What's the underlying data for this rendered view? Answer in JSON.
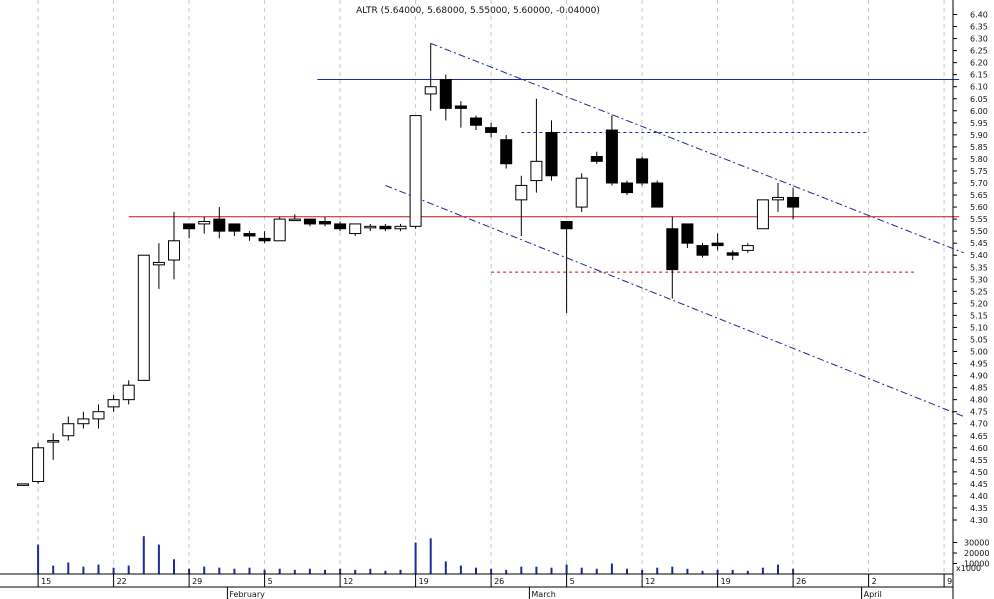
{
  "chart_data": {
    "type": "candlestick",
    "title": "ALTR (5.64000, 5.68000, 5.55000, 5.60000, -0.04000)",
    "price_axis": {
      "ylim": [
        4.2,
        6.45
      ],
      "ticks": [
        "6.40",
        "6.35",
        "6.30",
        "6.25",
        "6.20",
        "6.15",
        "6.10",
        "6.05",
        "6.00",
        "5.95",
        "5.90",
        "5.85",
        "5.80",
        "5.75",
        "5.70",
        "5.65",
        "5.60",
        "5.55",
        "5.50",
        "5.45",
        "5.40",
        "5.35",
        "5.30",
        "5.25",
        "5.20",
        "5.15",
        "5.10",
        "5.05",
        "5.00",
        "4.95",
        "4.90",
        "4.85",
        "4.80",
        "4.75",
        "4.70",
        "4.65",
        "4.60",
        "4.55",
        "4.50",
        "4.45",
        "4.40",
        "4.35",
        "4.30"
      ]
    },
    "volume_axis": {
      "ticks": [
        "30000",
        "20000",
        "10000"
      ],
      "unit_label": "x1000",
      "vmax": 40000
    },
    "x_axis": {
      "day_ticks": [
        {
          "label": "15",
          "slot": 1
        },
        {
          "label": "22",
          "slot": 6
        },
        {
          "label": "29",
          "slot": 11
        },
        {
          "label": "5",
          "slot": 16
        },
        {
          "label": "12",
          "slot": 21
        },
        {
          "label": "19",
          "slot": 26
        },
        {
          "label": "26",
          "slot": 31
        },
        {
          "label": "5",
          "slot": 36
        },
        {
          "label": "12",
          "slot": 41
        },
        {
          "label": "19",
          "slot": 46
        },
        {
          "label": "26",
          "slot": 51
        },
        {
          "label": "2",
          "slot": 56
        },
        {
          "label": "9",
          "slot": 61
        }
      ],
      "month_ticks": [
        {
          "label": "February",
          "slot": 14
        },
        {
          "label": "March",
          "slot": 34
        },
        {
          "label": "April",
          "slot": 56
        }
      ]
    },
    "candles": [
      {
        "slot": 0,
        "o": 4.45,
        "h": 4.45,
        "l": 4.45,
        "c": 4.45,
        "v": 0
      },
      {
        "slot": 1,
        "o": 4.46,
        "h": 4.62,
        "l": 4.45,
        "c": 4.6,
        "v": 28000
      },
      {
        "slot": 2,
        "o": 4.63,
        "h": 4.66,
        "l": 4.55,
        "c": 4.63,
        "v": 8000
      },
      {
        "slot": 3,
        "o": 4.65,
        "h": 4.73,
        "l": 4.63,
        "c": 4.7,
        "v": 11000
      },
      {
        "slot": 4,
        "o": 4.7,
        "h": 4.75,
        "l": 4.68,
        "c": 4.72,
        "v": 7000
      },
      {
        "slot": 5,
        "o": 4.72,
        "h": 4.78,
        "l": 4.68,
        "c": 4.75,
        "v": 9000
      },
      {
        "slot": 6,
        "o": 4.77,
        "h": 4.82,
        "l": 4.75,
        "c": 4.8,
        "v": 6000
      },
      {
        "slot": 7,
        "o": 4.8,
        "h": 4.88,
        "l": 4.78,
        "c": 4.86,
        "v": 8000
      },
      {
        "slot": 8,
        "o": 4.88,
        "h": 5.4,
        "l": 4.88,
        "c": 5.4,
        "v": 36000
      },
      {
        "slot": 9,
        "o": 5.36,
        "h": 5.45,
        "l": 5.26,
        "c": 5.37,
        "v": 28000
      },
      {
        "slot": 10,
        "o": 5.38,
        "h": 5.58,
        "l": 5.3,
        "c": 5.46,
        "v": 14000
      },
      {
        "slot": 11,
        "o": 5.53,
        "h": 5.53,
        "l": 5.47,
        "c": 5.51,
        "v": 5000
      },
      {
        "slot": 12,
        "o": 5.53,
        "h": 5.56,
        "l": 5.49,
        "c": 5.54,
        "v": 7000
      },
      {
        "slot": 13,
        "o": 5.55,
        "h": 5.6,
        "l": 5.47,
        "c": 5.5,
        "v": 6000
      },
      {
        "slot": 14,
        "o": 5.53,
        "h": 5.53,
        "l": 5.48,
        "c": 5.5,
        "v": 5000
      },
      {
        "slot": 15,
        "o": 5.49,
        "h": 5.5,
        "l": 5.46,
        "c": 5.48,
        "v": 6000
      },
      {
        "slot": 16,
        "o": 5.47,
        "h": 5.5,
        "l": 5.45,
        "c": 5.46,
        "v": 4000
      },
      {
        "slot": 17,
        "o": 5.46,
        "h": 5.56,
        "l": 5.46,
        "c": 5.55,
        "v": 5000
      },
      {
        "slot": 18,
        "o": 5.55,
        "h": 5.57,
        "l": 5.55,
        "c": 5.55,
        "v": 4000
      },
      {
        "slot": 19,
        "o": 5.55,
        "h": 5.55,
        "l": 5.52,
        "c": 5.53,
        "v": 5000
      },
      {
        "slot": 20,
        "o": 5.54,
        "h": 5.56,
        "l": 5.52,
        "c": 5.53,
        "v": 4000
      },
      {
        "slot": 21,
        "o": 5.53,
        "h": 5.54,
        "l": 5.5,
        "c": 5.51,
        "v": 5000
      },
      {
        "slot": 22,
        "o": 5.49,
        "h": 5.53,
        "l": 5.48,
        "c": 5.53,
        "v": 4000
      },
      {
        "slot": 23,
        "o": 5.52,
        "h": 5.53,
        "l": 5.5,
        "c": 5.52,
        "v": 5000
      },
      {
        "slot": 24,
        "o": 5.52,
        "h": 5.53,
        "l": 5.5,
        "c": 5.51,
        "v": 3000
      },
      {
        "slot": 25,
        "o": 5.51,
        "h": 5.53,
        "l": 5.5,
        "c": 5.52,
        "v": 4000
      },
      {
        "slot": 26,
        "o": 5.52,
        "h": 5.98,
        "l": 5.51,
        "c": 5.98,
        "v": 30000
      },
      {
        "slot": 27,
        "o": 6.07,
        "h": 6.28,
        "l": 6.0,
        "c": 6.1,
        "v": 34000
      },
      {
        "slot": 28,
        "o": 6.13,
        "h": 6.15,
        "l": 5.96,
        "c": 6.01,
        "v": 12000
      },
      {
        "slot": 29,
        "o": 6.02,
        "h": 6.04,
        "l": 5.93,
        "c": 6.01,
        "v": 8000
      },
      {
        "slot": 30,
        "o": 5.97,
        "h": 5.98,
        "l": 5.92,
        "c": 5.94,
        "v": 6000
      },
      {
        "slot": 31,
        "o": 5.93,
        "h": 5.95,
        "l": 5.89,
        "c": 5.91,
        "v": 5000
      },
      {
        "slot": 32,
        "o": 5.88,
        "h": 5.9,
        "l": 5.76,
        "c": 5.78,
        "v": 4000
      },
      {
        "slot": 33,
        "o": 5.63,
        "h": 5.73,
        "l": 5.48,
        "c": 5.69,
        "v": 7000
      },
      {
        "slot": 34,
        "o": 5.71,
        "h": 6.05,
        "l": 5.66,
        "c": 5.79,
        "v": 7000
      },
      {
        "slot": 35,
        "o": 5.91,
        "h": 5.96,
        "l": 5.71,
        "c": 5.73,
        "v": 6000
      },
      {
        "slot": 36,
        "o": 5.54,
        "h": 5.54,
        "l": 5.16,
        "c": 5.51,
        "v": 9000
      },
      {
        "slot": 37,
        "o": 5.6,
        "h": 5.74,
        "l": 5.58,
        "c": 5.72,
        "v": 6000
      },
      {
        "slot": 38,
        "o": 5.81,
        "h": 5.83,
        "l": 5.78,
        "c": 5.79,
        "v": 5000
      },
      {
        "slot": 39,
        "o": 5.92,
        "h": 5.98,
        "l": 5.69,
        "c": 5.7,
        "v": 10000
      },
      {
        "slot": 40,
        "o": 5.7,
        "h": 5.71,
        "l": 5.65,
        "c": 5.66,
        "v": 5000
      },
      {
        "slot": 41,
        "o": 5.8,
        "h": 5.81,
        "l": 5.69,
        "c": 5.7,
        "v": 4000
      },
      {
        "slot": 42,
        "o": 5.7,
        "h": 5.71,
        "l": 5.6,
        "c": 5.6,
        "v": 6000
      },
      {
        "slot": 43,
        "o": 5.51,
        "h": 5.56,
        "l": 5.22,
        "c": 5.34,
        "v": 7000
      },
      {
        "slot": 44,
        "o": 5.53,
        "h": 5.53,
        "l": 5.43,
        "c": 5.45,
        "v": 5000
      },
      {
        "slot": 45,
        "o": 5.44,
        "h": 5.45,
        "l": 5.39,
        "c": 5.4,
        "v": 3000
      },
      {
        "slot": 46,
        "o": 5.45,
        "h": 5.49,
        "l": 5.42,
        "c": 5.44,
        "v": 4000
      },
      {
        "slot": 47,
        "o": 5.41,
        "h": 5.42,
        "l": 5.38,
        "c": 5.4,
        "v": 4000
      },
      {
        "slot": 48,
        "o": 5.42,
        "h": 5.45,
        "l": 5.41,
        "c": 5.44,
        "v": 3000
      },
      {
        "slot": 49,
        "o": 5.51,
        "h": 5.63,
        "l": 5.51,
        "c": 5.63,
        "v": 6000
      },
      {
        "slot": 50,
        "o": 5.63,
        "h": 5.7,
        "l": 5.58,
        "c": 5.64,
        "v": 9000
      },
      {
        "slot": 51,
        "o": 5.64,
        "h": 5.68,
        "l": 5.55,
        "c": 5.6,
        "v": 5000
      }
    ],
    "lines": [
      {
        "kind": "solid",
        "color": "#1a2a9a",
        "x1": 19.5,
        "y1": 6.13,
        "x2": 62,
        "y2": 6.13
      },
      {
        "kind": "solid",
        "color": "#cc1111",
        "x1": 7,
        "y1": 5.56,
        "x2": 62,
        "y2": 5.56
      },
      {
        "kind": "dashed",
        "color": "#1a2a9a",
        "x1": 33,
        "y1": 5.91,
        "x2": 56,
        "y2": 5.91
      },
      {
        "kind": "dashed",
        "color": "#cc1111",
        "x1": 31,
        "y1": 5.33,
        "x2": 59,
        "y2": 5.33
      },
      {
        "kind": "dashdot",
        "color": "#1a2a9a",
        "x1": 27,
        "y1": 6.28,
        "x2": 62.3,
        "y2": 5.41
      },
      {
        "kind": "dashdot",
        "color": "#1a2a9a",
        "x1": 24,
        "y1": 5.69,
        "x2": 62.3,
        "y2": 4.73
      }
    ],
    "grid": "vertical-dotted",
    "colors": {
      "up_fill": "#ffffff",
      "down_fill": "#000000",
      "wick": "#000000",
      "volume": "#1a2a9a",
      "grid": "#c8c8c8"
    }
  }
}
